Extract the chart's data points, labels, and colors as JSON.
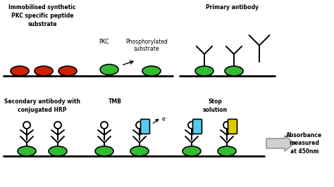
{
  "bg_color": "#ffffff",
  "line_color": "#000000",
  "red_color": "#cc2200",
  "green_color": "#33bb33",
  "cyan_color": "#55ccee",
  "yellow_color": "#ddcc00",
  "text_color": "#000000",
  "panel1_title": "Immobilised synthetic\nPKC specific peptide\nsubstrate",
  "panel2_label_pkc": "PKC",
  "panel2_label_phos": "Phosphorylated\nsubstrate",
  "panel3_title": "Primary antibody",
  "panel4_title": "Secondary antibody with\nconjugated HRP",
  "panel5_label_tmb": "TMB",
  "panel5_label_e": "e⁻",
  "panel6_label_stop": "Stop\nsolution",
  "panel7_label": "Absorbance\nmeasured\nat 450nm",
  "figsize": [
    4.74,
    2.66
  ],
  "dpi": 100
}
